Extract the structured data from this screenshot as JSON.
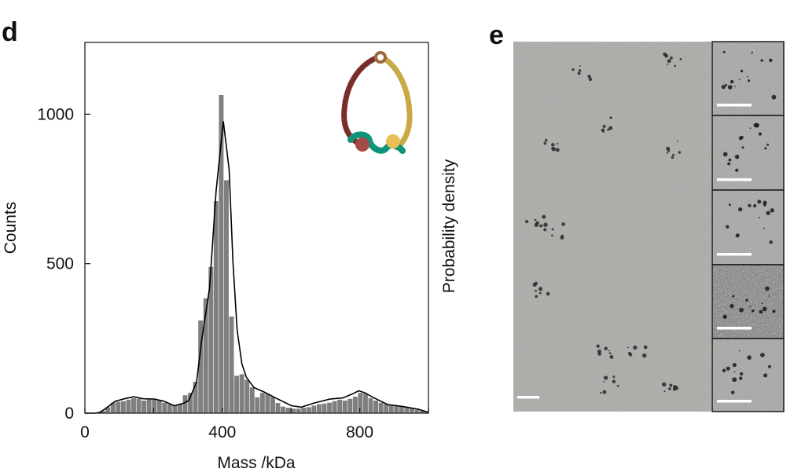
{
  "panels": {
    "d_label": "d",
    "e_label": "e"
  },
  "chart_data": {
    "type": "bar",
    "title": "",
    "xlabel": "Mass /kDa",
    "ylabel": "Counts",
    "y2label": "Probability density",
    "xlim": [
      0,
      1000
    ],
    "ylim": [
      0,
      1240
    ],
    "xticks": [
      0,
      200,
      400,
      600,
      800,
      1000
    ],
    "xtick_labels": [
      "0",
      "400",
      "800"
    ],
    "xtick_label_values": [
      0,
      400,
      800
    ],
    "yticks": [
      0,
      500,
      1000
    ],
    "ytick_labels": [
      "0",
      "500",
      "1000"
    ],
    "grid": false,
    "bar_color": "#7f7f7f",
    "curve_color": "#000000",
    "bin_start": 0,
    "bin_width": 15,
    "counts": [
      0,
      0,
      2,
      8,
      20,
      35,
      38,
      40,
      45,
      50,
      48,
      42,
      45,
      45,
      42,
      35,
      30,
      25,
      30,
      60,
      68,
      105,
      310,
      384,
      489,
      709,
      1064,
      779,
      323,
      125,
      130,
      112,
      86,
      53,
      68,
      64,
      55,
      34,
      22,
      18,
      15,
      15,
      18,
      20,
      25,
      30,
      32,
      35,
      40,
      45,
      42,
      48,
      55,
      68,
      65,
      50,
      42,
      35,
      30,
      28,
      25,
      22,
      20,
      18,
      12,
      8,
      3
    ],
    "density_curve": [
      [
        0,
        0
      ],
      [
        30,
        0
      ],
      [
        43,
        3
      ],
      [
        60,
        15
      ],
      [
        88,
        40
      ],
      [
        115,
        48
      ],
      [
        142,
        55
      ],
      [
        170,
        48
      ],
      [
        203,
        47
      ],
      [
        230,
        40
      ],
      [
        260,
        25
      ],
      [
        285,
        32
      ],
      [
        302,
        42
      ],
      [
        325,
        103
      ],
      [
        340,
        245
      ],
      [
        363,
        419
      ],
      [
        382,
        744
      ],
      [
        403,
        976
      ],
      [
        420,
        814
      ],
      [
        431,
        507
      ],
      [
        443,
        279
      ],
      [
        457,
        165
      ],
      [
        470,
        120
      ],
      [
        492,
        86
      ],
      [
        523,
        70
      ],
      [
        555,
        51
      ],
      [
        601,
        25
      ],
      [
        630,
        20
      ],
      [
        667,
        34
      ],
      [
        713,
        47
      ],
      [
        751,
        51
      ],
      [
        780,
        65
      ],
      [
        797,
        75
      ],
      [
        815,
        68
      ],
      [
        835,
        55
      ],
      [
        881,
        29
      ],
      [
        926,
        22
      ],
      [
        972,
        13
      ],
      [
        999,
        3
      ]
    ]
  },
  "schematic": {
    "colors": {
      "left_arm": "#7a2e2a",
      "right_arm": "#c9a944",
      "linker": "#0e9478",
      "left_bead": "#a64a45",
      "right_bead": "#e8c055"
    }
  },
  "micrograph": {
    "inset_count": 5,
    "scale_bar_color": "#ffffff",
    "background": "#a9a9a6"
  }
}
